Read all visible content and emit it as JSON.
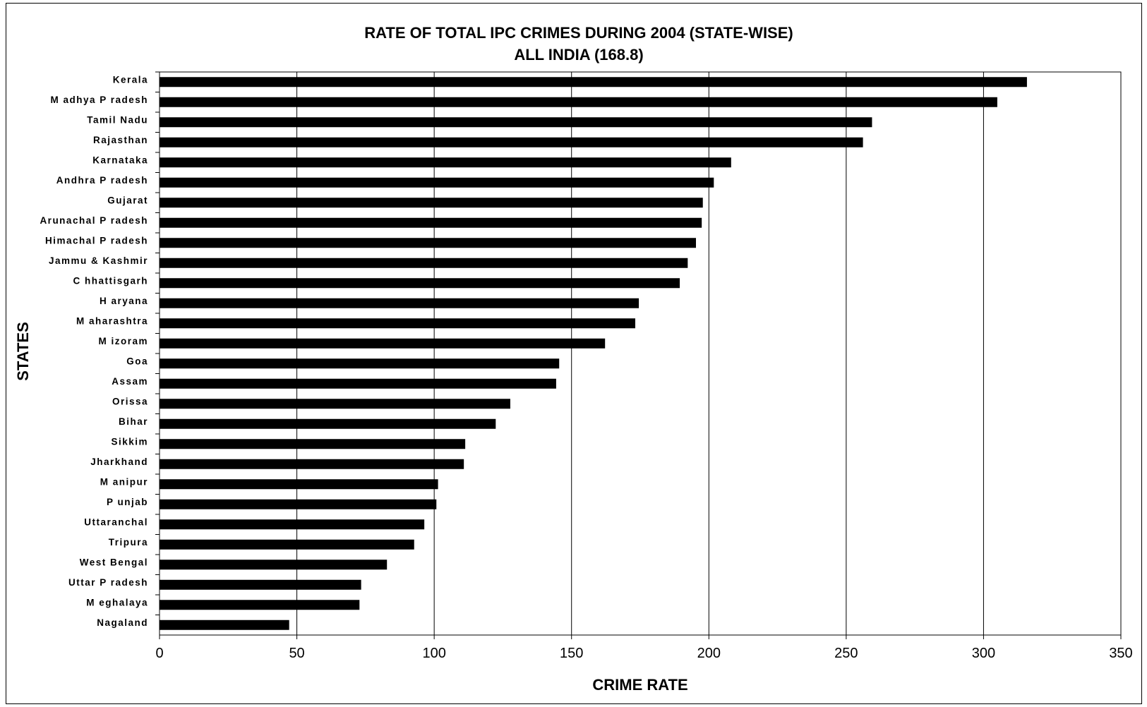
{
  "chart_data": {
    "type": "bar",
    "orientation": "horizontal",
    "title": "RATE OF TOTAL IPC CRIMES DURING 2004 (STATE-WISE)",
    "subtitle": "ALL INDIA (168.8)",
    "xlabel": "CRIME RATE",
    "ylabel": "STATES",
    "xlim": [
      0,
      350
    ],
    "xticks": [
      0,
      50,
      100,
      150,
      200,
      250,
      300,
      350
    ],
    "grid": "vertical",
    "bar_color": "#000000",
    "categories": [
      "Kerala",
      "M adhya P radesh",
      "Tamil Nadu",
      "Rajasthan",
      "Karnataka",
      "Andhra P radesh",
      "Gujarat",
      "Arunachal P radesh",
      "Himachal P radesh",
      "Jammu & Kashmir",
      "C hhattisgarh",
      "H aryana",
      "M aharashtra",
      "M izoram",
      "Goa",
      "Assam",
      "Orissa",
      "Bihar",
      "Sikkim",
      "Jharkhand",
      "M anipur",
      "P unjab",
      "Uttaranchal",
      "Tripura",
      "West Bengal",
      "Uttar P radesh",
      "M eghalaya",
      "Nagaland"
    ],
    "values": [
      315.8,
      305.0,
      259.4,
      256.1,
      208.1,
      201.8,
      197.8,
      197.4,
      195.3,
      192.3,
      189.4,
      174.5,
      173.2,
      162.2,
      145.5,
      144.4,
      127.7,
      122.4,
      111.3,
      110.8,
      101.4,
      100.8,
      96.4,
      92.7,
      82.8,
      73.4,
      72.8,
      47.2
    ]
  }
}
